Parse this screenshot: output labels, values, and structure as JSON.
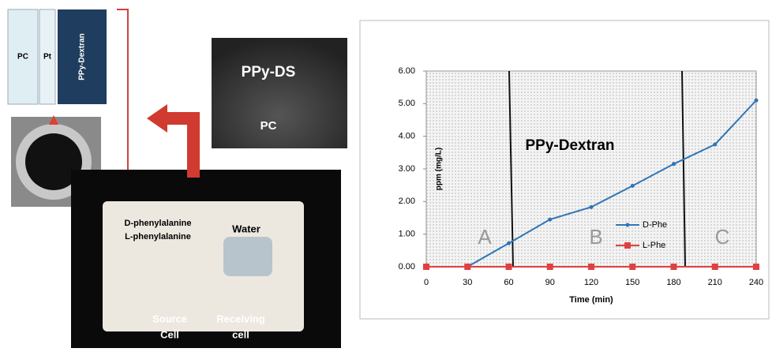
{
  "figure_labels": {
    "membrane": [
      "PC",
      "Pt",
      "PPy-Dextran"
    ],
    "sem": [
      "PPy-DS",
      "PC"
    ],
    "source_solution": [
      "D-phenylalanine",
      "L-phenylalanine"
    ],
    "receiving_solution": "Water",
    "source_cell": [
      "Source",
      "Cell"
    ],
    "receiving_cell": [
      "Receiving",
      "cell"
    ]
  },
  "chart_data": {
    "type": "line",
    "title": "PPy-Dextran",
    "x_label": "Time (min)",
    "y_label": "ppm (mg/L)",
    "x": [
      0,
      30,
      60,
      90,
      120,
      150,
      180,
      210,
      240
    ],
    "series": [
      {
        "name": "D-Phe",
        "color": "#2e75b6",
        "values": [
          0,
          0,
          0.72,
          1.45,
          1.83,
          2.48,
          3.15,
          3.75,
          5.1
        ]
      },
      {
        "name": "L-Phe",
        "color": "#e04040",
        "values": [
          0,
          0,
          0,
          0,
          0,
          0,
          0,
          0,
          0
        ]
      }
    ],
    "xlim": [
      0,
      240
    ],
    "xticks": [
      0,
      30,
      60,
      90,
      120,
      150,
      180,
      210,
      240
    ],
    "ylim": [
      0,
      6
    ],
    "yticks": [
      {
        "value": 0,
        "label": "0.00"
      },
      {
        "value": 1,
        "label": "1.00"
      },
      {
        "value": 2,
        "label": "2.00"
      },
      {
        "value": 3,
        "label": "3.00"
      },
      {
        "value": 4,
        "label": "4.00"
      },
      {
        "value": 5,
        "label": "5.00"
      },
      {
        "value": 6,
        "label": "6.00"
      }
    ],
    "grid": false,
    "legend": "right",
    "annotations": [
      "A",
      "B",
      "C"
    ]
  }
}
